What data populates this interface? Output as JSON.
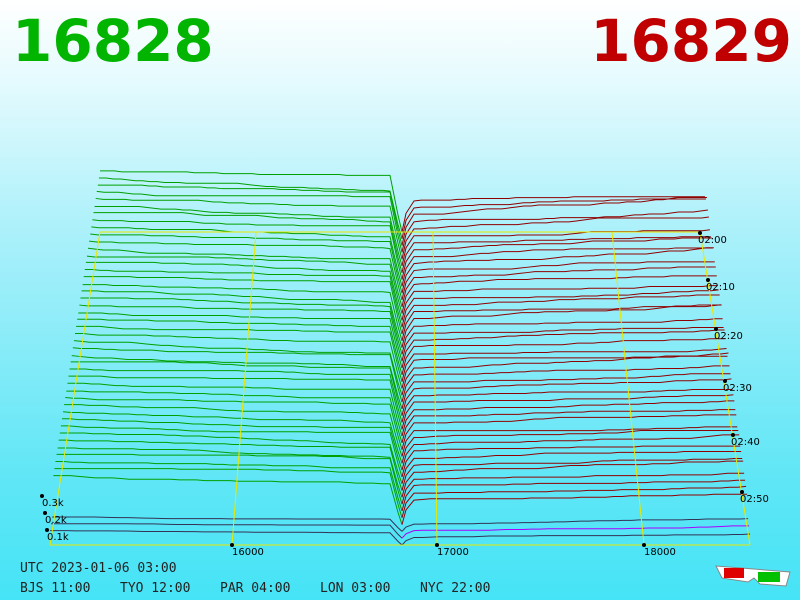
{
  "header": {
    "bid": "16828",
    "ask": "16829"
  },
  "price_labels": [
    "16000",
    "17000",
    "18000"
  ],
  "time_labels": [
    "02:00",
    "02:10",
    "02:20",
    "02:30",
    "02:40",
    "02:50"
  ],
  "volume_labels": [
    "0.3k",
    "0.2k",
    "0.1k"
  ],
  "footer": {
    "utc": "UTC 2023-01-06 03:00",
    "zones": [
      "BJS 11:00",
      "TYO 12:00",
      "PAR 04:00",
      "LON 03:00",
      "NYC 22:00"
    ]
  }
}
